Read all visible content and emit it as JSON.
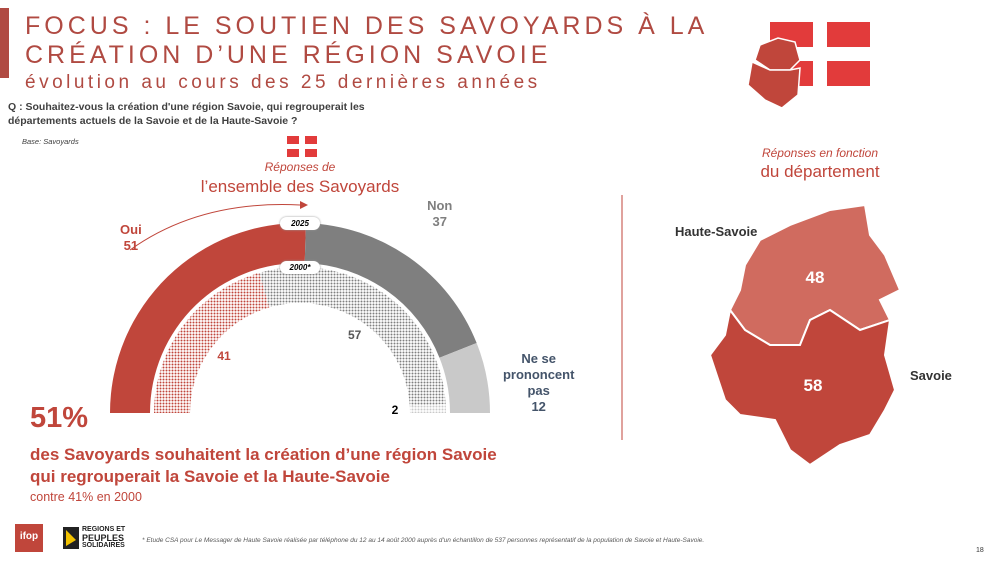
{
  "header": {
    "title_lines": [
      "FOCUS : LE SOUTIEN DES SAVOYARDS À LA",
      "CRÉATION D’UNE RÉGION SAVOIE"
    ],
    "subtitle": "évolution au cours des 25 dernières années",
    "question": "Q : Souhaitez-vous la création d'une région Savoie, qui regrouperait les départements actuels de la Savoie et de la Haute-Savoie ?",
    "base": "Base: Savoyards"
  },
  "chart_data": [
    {
      "type": "semi-donut",
      "subtitle": "Réponses de",
      "title": "l’ensemble des Savoyards",
      "categories": [
        "Oui",
        "Non",
        "Ne se prononcent pas"
      ],
      "series": [
        {
          "name": "2025",
          "colors": [
            "#c0463b",
            "#7f7f7f",
            "#c9c9c9"
          ],
          "values": [
            51,
            37,
            12
          ]
        },
        {
          "name": "2000*",
          "colors": [
            "#c0463b",
            "#7f7f7f",
            "#c9c9c9"
          ],
          "pattern": "dots",
          "values": [
            41,
            57,
            2
          ]
        }
      ]
    },
    {
      "type": "map",
      "subtitle": "Réponses en fonction",
      "title": "du département",
      "categories": [
        "Haute-Savoie",
        "Savoie"
      ],
      "colors": [
        "#d06b5f",
        "#c0463b"
      ],
      "values": [
        48,
        58
      ]
    }
  ],
  "summary": {
    "headline": "51%",
    "statement_lines": [
      "des Savoyards souhaitent la création d’une région Savoie",
      "qui regrouperait la Savoie et la Haute-Savoie"
    ],
    "comparison": "contre 41% en 2000"
  },
  "footer": {
    "ifop": "ifop",
    "partner_lines": [
      "REGIONS ET",
      "PEUPLES",
      "SOLIDAIRES"
    ],
    "footnote": "* Etude CSA pour Le Messager de Haute Savoie réalisée par téléphone du 12 au 14 août 2000 auprès d'un échantillon de 537 personnes représentatif de la population de Savoie et Haute-Savoie.",
    "page": "18"
  }
}
